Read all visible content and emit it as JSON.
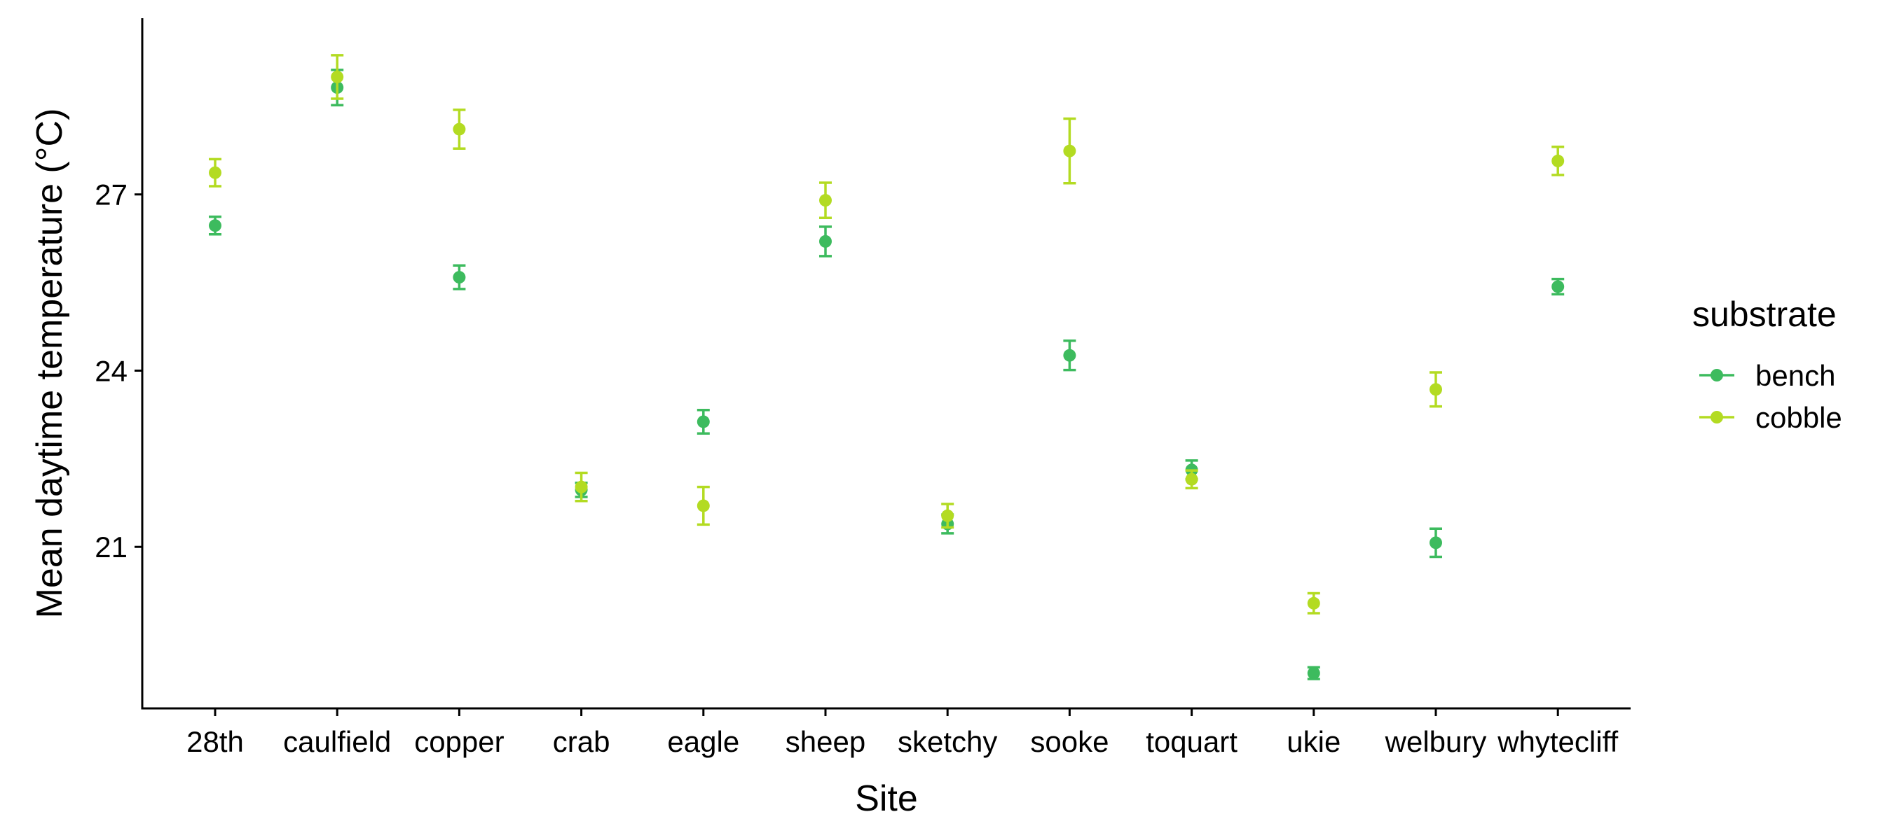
{
  "chart_data": {
    "type": "scatter",
    "title": "",
    "xlabel": "Site",
    "ylabel": "Mean daytime temperature (°C)",
    "categories": [
      "28th",
      "caulfield",
      "copper",
      "crab",
      "eagle",
      "sheep",
      "sketchy",
      "sooke",
      "toquart",
      "ukie",
      "welbury",
      "whytecliff"
    ],
    "ylim": [
      18.25,
      30.0
    ],
    "yticks": [
      21,
      24,
      27
    ],
    "grid": false,
    "legend": {
      "title": "substrate",
      "placement": "right"
    },
    "series": [
      {
        "name": "bench",
        "color": "#3dbb5e",
        "values": [
          26.47,
          28.82,
          25.59,
          21.97,
          23.13,
          26.2,
          21.39,
          24.26,
          22.31,
          18.85,
          21.07,
          25.43
        ],
        "errors": [
          0.15,
          0.3,
          0.2,
          0.12,
          0.2,
          0.25,
          0.16,
          0.25,
          0.16,
          0.1,
          0.24,
          0.13
        ]
      },
      {
        "name": "cobble",
        "color": "#b3db22",
        "values": [
          27.37,
          29.0,
          28.11,
          22.02,
          21.7,
          26.9,
          21.53,
          27.74,
          22.15,
          20.04,
          23.68,
          27.57
        ],
        "errors": [
          0.23,
          0.37,
          0.33,
          0.24,
          0.32,
          0.3,
          0.2,
          0.55,
          0.15,
          0.17,
          0.29,
          0.24
        ]
      }
    ]
  }
}
